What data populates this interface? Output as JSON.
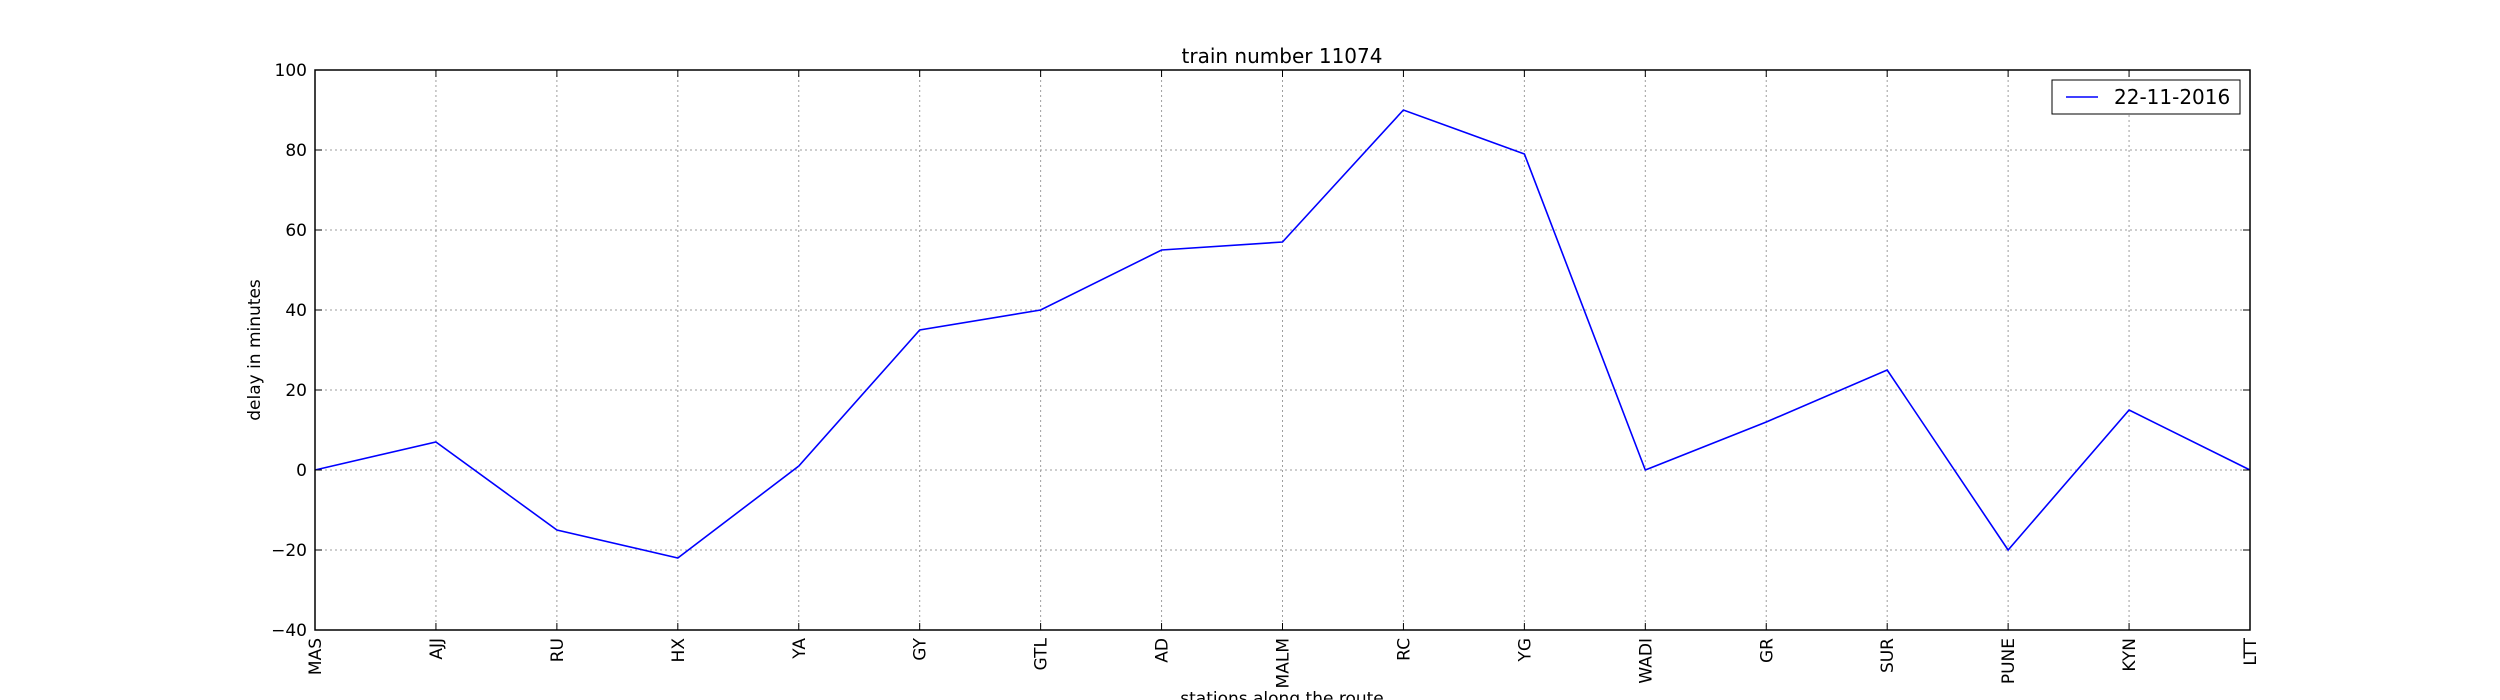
{
  "chart_data": {
    "type": "line",
    "title": "train number 11074",
    "xlabel": "stations along the route",
    "ylabel": "delay in minutes",
    "categories": [
      "MAS",
      "AJJ",
      "RU",
      "HX",
      "YA",
      "GY",
      "GTL",
      "AD",
      "MALM",
      "RC",
      "YG",
      "WADI",
      "GR",
      "SUR",
      "PUNE",
      "KYN",
      "LTT"
    ],
    "series": [
      {
        "name": "22-11-2016",
        "color": "#0000ff",
        "values": [
          0,
          7,
          -15,
          -22,
          1,
          35,
          40,
          55,
          57,
          90,
          79,
          0,
          12,
          25,
          -20,
          15,
          0
        ]
      }
    ],
    "ylim": [
      -40,
      100
    ],
    "yticks": [
      -40,
      -20,
      0,
      20,
      40,
      60,
      80,
      100
    ],
    "ytick_labels": [
      "−40",
      "−20",
      "0",
      "20",
      "40",
      "60",
      "80",
      "100"
    ],
    "grid": true,
    "legend_position": "top-right"
  }
}
